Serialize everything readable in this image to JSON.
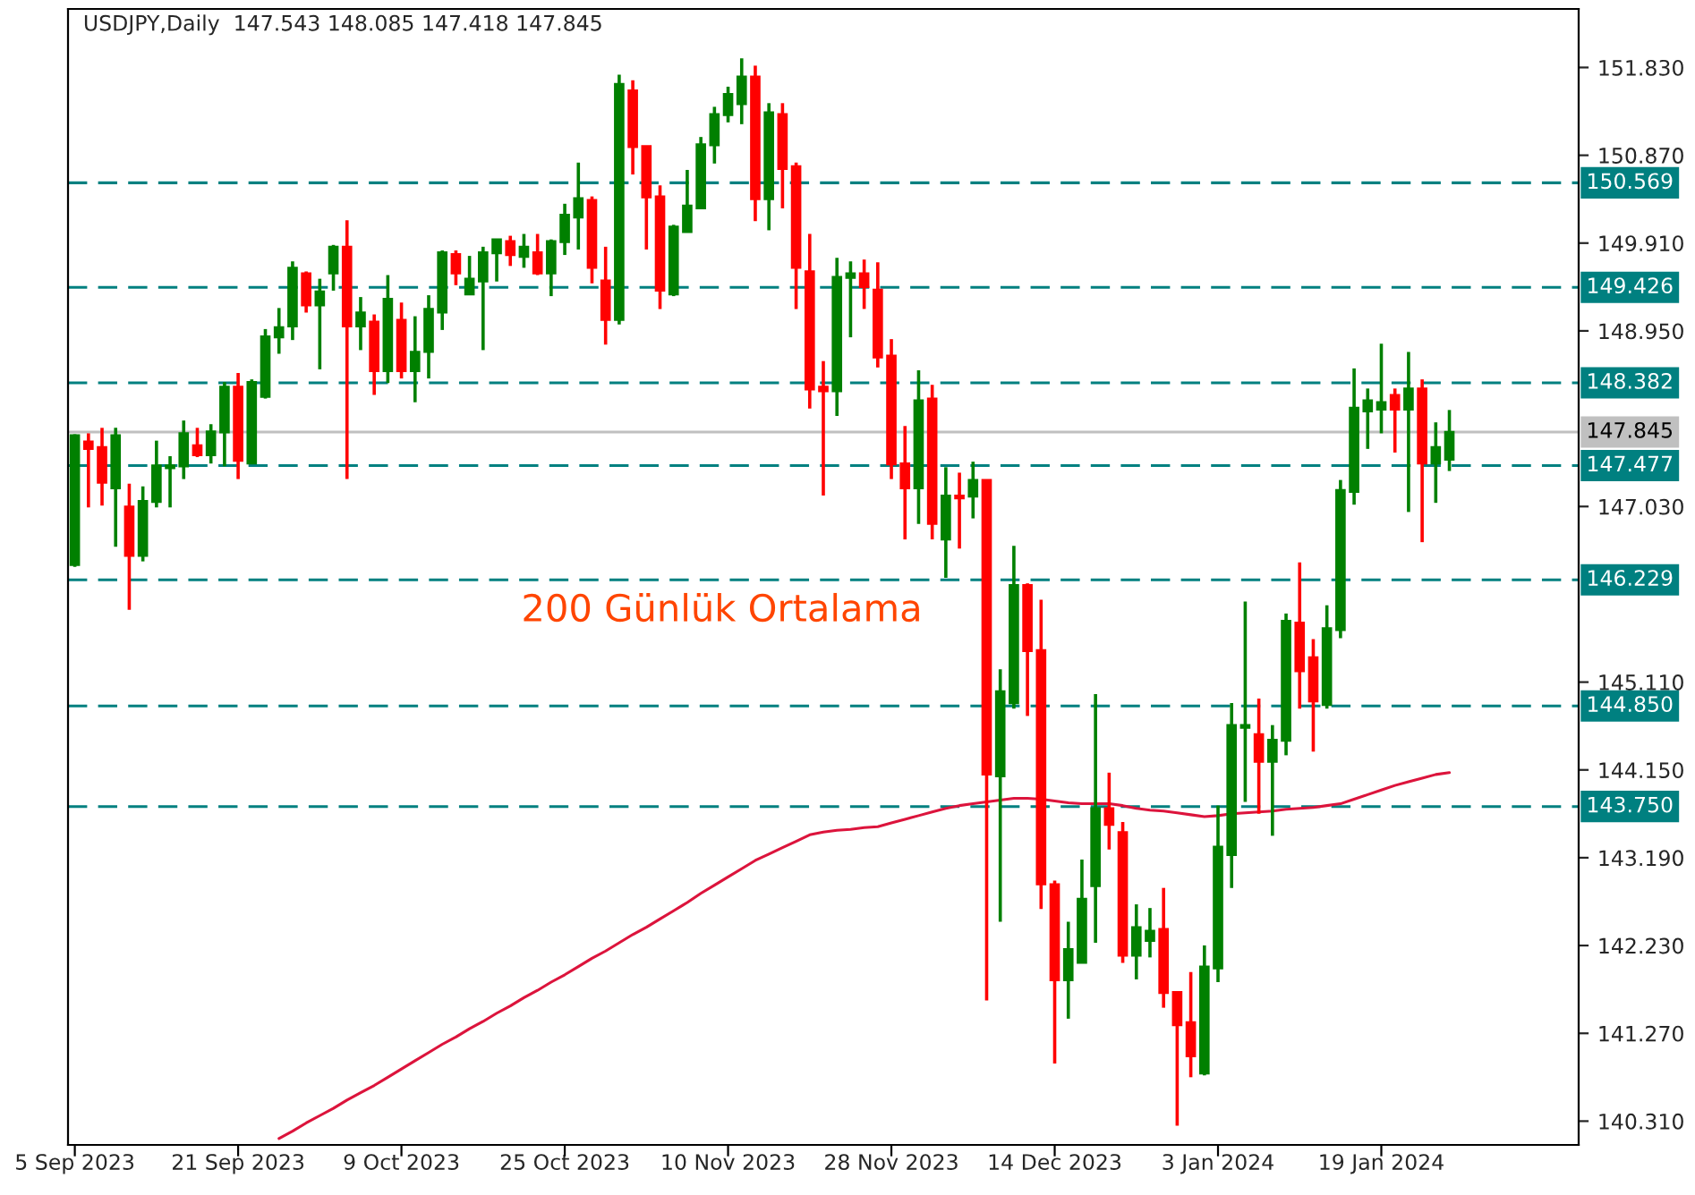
{
  "chart_data": {
    "type": "candlestick",
    "title": "USDJPY,Daily  147.543 148.085 147.418 147.845",
    "categories": [
      "5 Sep 2023",
      null,
      null,
      null,
      null,
      null,
      null,
      null,
      null,
      null,
      null,
      null,
      "21 Sep 2023",
      null,
      null,
      null,
      null,
      null,
      null,
      null,
      null,
      null,
      null,
      null,
      "9 Oct 2023",
      null,
      null,
      null,
      null,
      null,
      null,
      null,
      null,
      null,
      null,
      null,
      "25 Oct 2023",
      null,
      null,
      null,
      null,
      null,
      null,
      null,
      null,
      null,
      null,
      null,
      "10 Nov 2023",
      null,
      null,
      null,
      null,
      null,
      null,
      null,
      null,
      null,
      null,
      null,
      "28 Nov 2023",
      null,
      null,
      null,
      null,
      null,
      null,
      null,
      null,
      null,
      null,
      null,
      "14 Dec 2023",
      null,
      null,
      null,
      null,
      null,
      null,
      null,
      null,
      null,
      null,
      null,
      "3 Jan 2024",
      null,
      null,
      null,
      null,
      null,
      null,
      null,
      null,
      null,
      null,
      null,
      "19 Jan 2024",
      null,
      null,
      null,
      null,
      null
    ],
    "ohlc": [
      [
        146.39,
        147.82,
        146.37,
        147.81
      ],
      [
        147.74,
        147.83,
        147.02,
        147.66
      ],
      [
        147.68,
        147.89,
        147.04,
        147.29
      ],
      [
        147.23,
        147.89,
        146.59,
        147.81
      ],
      [
        147.03,
        147.28,
        145.9,
        146.49
      ],
      [
        146.49,
        147.25,
        146.43,
        147.09
      ],
      [
        147.08,
        147.75,
        147.02,
        147.48
      ],
      [
        147.45,
        147.58,
        147.02,
        147.48
      ],
      [
        147.47,
        147.97,
        147.33,
        147.83
      ],
      [
        147.7,
        147.89,
        147.57,
        147.59
      ],
      [
        147.59,
        147.93,
        147.5,
        147.85
      ],
      [
        147.84,
        148.39,
        147.47,
        148.34
      ],
      [
        148.34,
        148.49,
        147.33,
        147.53
      ],
      [
        147.5,
        148.42,
        147.5,
        148.39
      ],
      [
        148.23,
        148.97,
        148.21,
        148.89
      ],
      [
        148.88,
        149.2,
        148.7,
        148.99
      ],
      [
        149.0,
        149.71,
        148.85,
        149.64
      ],
      [
        149.58,
        149.6,
        149.15,
        149.23
      ],
      [
        149.23,
        149.52,
        148.53,
        149.38
      ],
      [
        149.58,
        149.89,
        149.39,
        149.87
      ],
      [
        149.87,
        150.16,
        147.33,
        149.0
      ],
      [
        149.0,
        149.32,
        148.74,
        149.15
      ],
      [
        149.05,
        149.13,
        148.25,
        148.51
      ],
      [
        148.51,
        149.56,
        148.38,
        149.3
      ],
      [
        149.07,
        149.26,
        148.43,
        148.51
      ],
      [
        148.51,
        149.11,
        148.17,
        148.72
      ],
      [
        148.72,
        149.34,
        148.43,
        149.19
      ],
      [
        149.15,
        149.83,
        148.96,
        149.81
      ],
      [
        149.79,
        149.83,
        149.45,
        149.58
      ],
      [
        149.35,
        149.77,
        149.35,
        149.52
      ],
      [
        149.49,
        149.87,
        148.74,
        149.81
      ],
      [
        149.8,
        149.95,
        149.49,
        149.95
      ],
      [
        149.93,
        149.99,
        149.66,
        149.78
      ],
      [
        149.76,
        150.01,
        149.64,
        149.87
      ],
      [
        149.81,
        150.01,
        149.56,
        149.58
      ],
      [
        149.58,
        149.95,
        149.33,
        149.93
      ],
      [
        149.92,
        150.34,
        149.78,
        150.22
      ],
      [
        150.19,
        150.79,
        149.84,
        150.4
      ],
      [
        150.38,
        150.42,
        149.47,
        149.64
      ],
      [
        149.5,
        149.87,
        148.8,
        149.07
      ],
      [
        149.07,
        151.75,
        149.02,
        151.65
      ],
      [
        151.58,
        151.69,
        150.66,
        150.96
      ],
      [
        150.97,
        150.97,
        149.84,
        150.41
      ],
      [
        150.42,
        150.54,
        149.19,
        149.39
      ],
      [
        149.35,
        150.11,
        149.33,
        150.09
      ],
      [
        150.03,
        150.71,
        150.03,
        150.32
      ],
      [
        150.29,
        151.07,
        150.29,
        150.99
      ],
      [
        150.98,
        151.4,
        150.78,
        151.32
      ],
      [
        151.31,
        151.62,
        151.23,
        151.54
      ],
      [
        151.43,
        151.93,
        151.21,
        151.73
      ],
      [
        151.73,
        151.85,
        150.15,
        150.39
      ],
      [
        150.39,
        151.44,
        150.05,
        151.34
      ],
      [
        151.32,
        151.44,
        150.29,
        150.72
      ],
      [
        150.75,
        150.79,
        149.19,
        149.64
      ],
      [
        149.6,
        150.01,
        148.1,
        148.31
      ],
      [
        148.34,
        148.62,
        147.15,
        148.29
      ],
      [
        148.29,
        149.75,
        148.02,
        149.54
      ],
      [
        149.53,
        149.71,
        148.88,
        149.58
      ],
      [
        149.58,
        149.73,
        149.19,
        149.43
      ],
      [
        149.4,
        149.7,
        148.55,
        148.66
      ],
      [
        148.68,
        148.86,
        147.33,
        147.49
      ],
      [
        147.5,
        147.91,
        146.67,
        147.23
      ],
      [
        147.23,
        148.52,
        146.84,
        148.19
      ],
      [
        148.21,
        148.36,
        146.67,
        146.84
      ],
      [
        146.67,
        147.46,
        146.25,
        147.15
      ],
      [
        147.15,
        147.4,
        146.57,
        147.12
      ],
      [
        147.14,
        147.52,
        146.9,
        147.32
      ],
      [
        147.32,
        147.32,
        141.63,
        144.1
      ],
      [
        144.08,
        145.25,
        142.49,
        145.01
      ],
      [
        144.88,
        146.6,
        144.82,
        146.17
      ],
      [
        146.17,
        146.19,
        144.74,
        145.45
      ],
      [
        145.46,
        146.01,
        142.63,
        142.9
      ],
      [
        142.9,
        142.94,
        140.94,
        141.85
      ],
      [
        141.85,
        142.49,
        141.43,
        142.19
      ],
      [
        142.04,
        143.17,
        142.04,
        142.74
      ],
      [
        142.88,
        144.98,
        142.26,
        143.73
      ],
      [
        143.73,
        144.12,
        143.28,
        143.55
      ],
      [
        143.47,
        143.58,
        142.04,
        142.12
      ],
      [
        142.12,
        142.68,
        141.86,
        142.43
      ],
      [
        142.28,
        142.64,
        142.1,
        142.39
      ],
      [
        142.41,
        142.86,
        141.55,
        141.71
      ],
      [
        141.72,
        141.72,
        140.26,
        141.36
      ],
      [
        141.39,
        141.94,
        140.79,
        141.02
      ],
      [
        140.83,
        142.23,
        140.81,
        142.0
      ],
      [
        141.98,
        143.76,
        141.83,
        143.31
      ],
      [
        143.22,
        144.88,
        142.86,
        144.64
      ],
      [
        144.61,
        145.99,
        143.8,
        144.64
      ],
      [
        144.54,
        144.93,
        143.67,
        144.24
      ],
      [
        144.24,
        144.64,
        143.43,
        144.48
      ],
      [
        144.47,
        145.86,
        144.31,
        145.78
      ],
      [
        145.76,
        146.42,
        144.82,
        145.23
      ],
      [
        145.38,
        145.58,
        144.35,
        144.9
      ],
      [
        144.86,
        145.95,
        144.82,
        145.7
      ],
      [
        145.68,
        147.32,
        145.59,
        147.21
      ],
      [
        147.19,
        148.54,
        147.05,
        148.11
      ],
      [
        148.07,
        148.32,
        147.66,
        148.19
      ],
      [
        148.09,
        148.81,
        147.83,
        148.17
      ],
      [
        148.25,
        148.32,
        147.62,
        148.09
      ],
      [
        148.09,
        148.72,
        146.97,
        148.32
      ],
      [
        148.32,
        148.42,
        146.64,
        147.5
      ],
      [
        147.5,
        147.95,
        147.07,
        147.68
      ],
      [
        147.543,
        148.085,
        147.418,
        147.845
      ]
    ],
    "colors": [
      "#008000",
      "#ff0000",
      "#ff0000",
      "#008000",
      "#ff0000",
      "#008000",
      "#008000",
      "#008000",
      "#008000",
      "#ff0000",
      "#008000",
      "#008000",
      "#ff0000",
      "#008000",
      "#008000",
      "#008000",
      "#008000",
      "#ff0000",
      "#008000",
      "#008000",
      "#ff0000",
      "#008000",
      "#ff0000",
      "#008000",
      "#ff0000",
      "#008000",
      "#008000",
      "#008000",
      "#ff0000",
      "#008000",
      "#008000",
      "#008000",
      "#ff0000",
      "#008000",
      "#ff0000",
      "#008000",
      "#008000",
      "#008000",
      "#ff0000",
      "#ff0000",
      "#008000",
      "#ff0000",
      "#ff0000",
      "#ff0000",
      "#008000",
      "#008000",
      "#008000",
      "#008000",
      "#008000",
      "#008000",
      "#ff0000",
      "#008000",
      "#ff0000",
      "#ff0000",
      "#ff0000",
      "#ff0000",
      "#008000",
      "#008000",
      "#ff0000",
      "#ff0000",
      "#ff0000",
      "#ff0000",
      "#008000",
      "#ff0000",
      "#008000",
      "#ff0000",
      "#008000",
      "#ff0000",
      "#008000",
      "#008000",
      "#ff0000",
      "#ff0000",
      "#ff0000",
      "#008000",
      "#008000",
      "#008000",
      "#ff0000",
      "#ff0000",
      "#008000",
      "#008000",
      "#ff0000",
      "#ff0000",
      "#ff0000",
      "#008000",
      "#008000",
      "#008000",
      "#008000",
      "#ff0000",
      "#008000",
      "#008000",
      "#ff0000",
      "#ff0000",
      "#008000",
      "#008000",
      "#008000",
      "#008000",
      "#008000",
      "#ff0000",
      "#008000",
      "#ff0000",
      "#008000",
      "#008000"
    ],
    "series": [
      {
        "type": "line",
        "color": "#dc143c",
        "values": [
          null,
          null,
          null,
          null,
          null,
          null,
          null,
          null,
          null,
          null,
          null,
          null,
          null,
          null,
          null,
          140.12,
          140.2,
          140.29,
          140.37,
          140.45,
          140.54,
          140.62,
          140.7,
          140.79,
          140.88,
          140.97,
          141.06,
          141.15,
          141.23,
          141.32,
          141.4,
          141.49,
          141.57,
          141.66,
          141.74,
          141.83,
          141.91,
          142.0,
          142.09,
          142.17,
          142.26,
          142.35,
          142.43,
          142.52,
          142.61,
          142.7,
          142.8,
          142.89,
          142.98,
          143.07,
          143.16,
          143.23,
          143.3,
          143.37,
          143.44,
          143.47,
          143.49,
          143.5,
          143.52,
          143.53,
          143.57,
          143.61,
          143.65,
          143.69,
          143.73,
          143.76,
          143.78,
          143.8,
          143.82,
          143.84,
          143.84,
          143.83,
          143.81,
          143.79,
          143.78,
          143.78,
          143.78,
          143.76,
          143.73,
          143.71,
          143.7,
          143.68,
          143.66,
          143.64,
          143.65,
          143.67,
          143.68,
          143.69,
          143.7,
          143.72,
          143.73,
          143.74,
          143.76,
          143.78,
          143.83,
          143.88,
          143.93,
          143.98,
          144.02,
          144.06,
          144.1,
          144.12
        ]
      }
    ],
    "ylim": [
      140.05,
      152.47
    ],
    "yticks": [
      {
        "value": 151.83,
        "label": "151.830"
      },
      {
        "value": 150.87,
        "label": "150.870"
      },
      {
        "value": 149.91,
        "label": "149.910"
      },
      {
        "value": 148.95,
        "label": "148.950"
      },
      {
        "value": 147.03,
        "label": "147.030"
      },
      {
        "value": 145.11,
        "label": "145.110"
      },
      {
        "value": 144.15,
        "label": "144.150"
      },
      {
        "value": 143.19,
        "label": "143.190"
      },
      {
        "value": 142.23,
        "label": "142.230"
      },
      {
        "value": 141.27,
        "label": "141.270"
      },
      {
        "value": 140.31,
        "label": "140.310"
      }
    ],
    "ref_lines": [
      {
        "axis": "y",
        "value": 150.569,
        "label": "150.569",
        "color": "#008080",
        "line_style": "dashed"
      },
      {
        "axis": "y",
        "value": 149.426,
        "label": "149.426",
        "color": "#008080",
        "line_style": "dashed"
      },
      {
        "axis": "y",
        "value": 148.382,
        "label": "148.382",
        "color": "#008080",
        "line_style": "dashed"
      },
      {
        "axis": "y",
        "value": 147.477,
        "label": "147.477",
        "color": "#008080",
        "line_style": "dashed"
      },
      {
        "axis": "y",
        "value": 146.229,
        "label": "146.229",
        "color": "#008080",
        "line_style": "dashed"
      },
      {
        "axis": "y",
        "value": 144.85,
        "label": "144.850",
        "color": "#008080",
        "line_style": "dashed"
      },
      {
        "axis": "y",
        "value": 143.75,
        "label": "143.750",
        "color": "#008080",
        "line_style": "dashed"
      },
      {
        "axis": "y",
        "value": 147.845,
        "label": "147.845",
        "color": "#c0c0c0",
        "line_style": "solid"
      }
    ],
    "annotations": [
      "200 Günlük Ortalama"
    ],
    "grid": false,
    "legend": false
  }
}
